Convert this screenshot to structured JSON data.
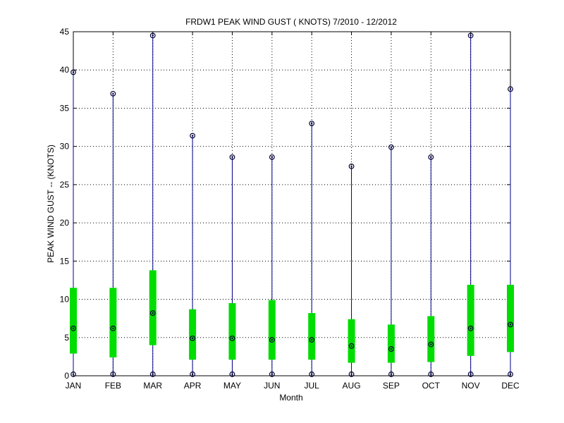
{
  "chart_data": {
    "type": "box",
    "title": "FRDW1  PEAK WIND GUST ( KNOTS) 7/2010 - 12/2012",
    "xlabel": "Month",
    "ylabel": "PEAK WIND GUST -- (KNOTS)",
    "categories": [
      "JAN",
      "FEB",
      "MAR",
      "APR",
      "MAY",
      "JUN",
      "JUL",
      "AUG",
      "SEP",
      "OCT",
      "NOV",
      "DEC"
    ],
    "ylim": [
      0,
      45
    ],
    "yticks": [
      0,
      5,
      10,
      15,
      20,
      25,
      30,
      35,
      40,
      45
    ],
    "grid": true,
    "series": [
      {
        "min": [
          0.2,
          0.2,
          0.2,
          0.2,
          0.2,
          0.2,
          0.2,
          0.2,
          0.2,
          0.2,
          0.2,
          0.2
        ],
        "q1": [
          2.9,
          2.4,
          4.0,
          2.1,
          2.1,
          2.1,
          2.1,
          1.7,
          1.7,
          1.8,
          2.6,
          3.1
        ],
        "median": [
          6.2,
          6.2,
          8.2,
          4.9,
          4.9,
          4.7,
          4.7,
          3.9,
          3.5,
          4.1,
          6.2,
          6.7
        ],
        "q3": [
          11.5,
          11.5,
          13.8,
          8.7,
          9.5,
          9.9,
          8.2,
          7.4,
          6.7,
          7.8,
          11.9,
          11.9
        ],
        "max": [
          39.7,
          36.9,
          44.5,
          31.4,
          28.6,
          28.6,
          33.0,
          27.4,
          29.9,
          28.6,
          44.5,
          37.5
        ]
      }
    ],
    "colors": {
      "box": "#00dd00",
      "whisker": "#00008b",
      "marker": "#000033"
    }
  }
}
